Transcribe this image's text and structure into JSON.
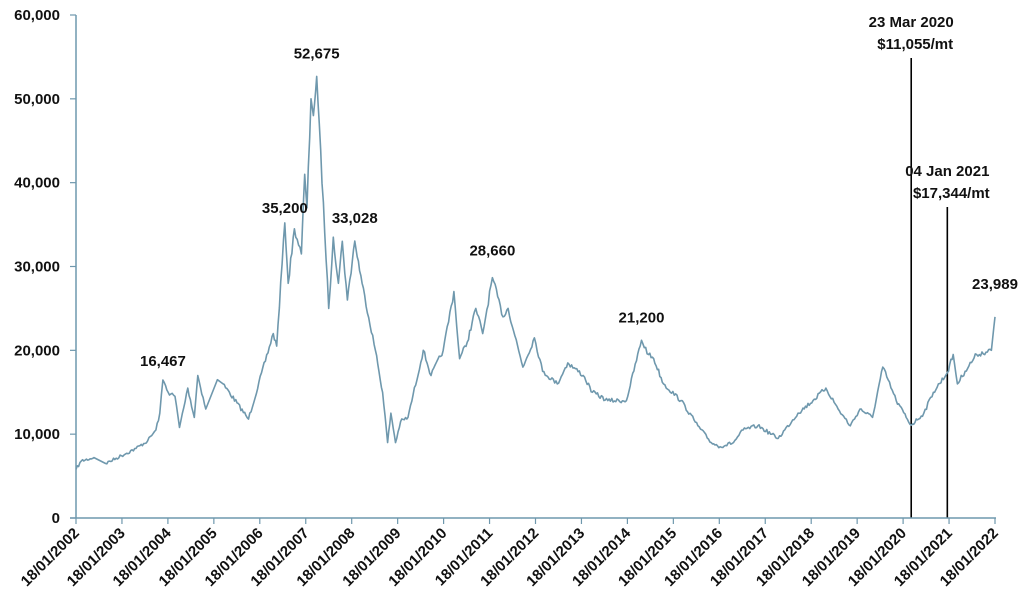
{
  "chart_data": {
    "type": "line",
    "title": "",
    "xlabel": "",
    "ylabel": "",
    "ylim": [
      0,
      60000
    ],
    "xlim": [
      "2002-01-18",
      "2022-01-18"
    ],
    "grid": false,
    "line_color": "#6f98ad",
    "y_ticks": [
      "0",
      "10,000",
      "20,000",
      "30,000",
      "40,000",
      "50,000",
      "60,000"
    ],
    "y_tick_values": [
      0,
      10000,
      20000,
      30000,
      40000,
      50000,
      60000
    ],
    "x_ticks": [
      "18/01/2002",
      "18/01/2003",
      "18/01/2004",
      "18/01/2005",
      "18/01/2006",
      "18/01/2007",
      "18/01/2008",
      "18/01/2009",
      "18/01/2010",
      "18/01/2011",
      "18/01/2012",
      "18/01/2013",
      "18/01/2014",
      "18/01/2015",
      "18/01/2016",
      "18/01/2017",
      "18/01/2018",
      "18/01/2019",
      "18/01/2020",
      "18/01/2021",
      "18/01/2022"
    ],
    "series": [
      {
        "points": [
          [
            "2002-01-18",
            5800
          ],
          [
            "2002-03-01",
            6800
          ],
          [
            "2002-06-10",
            7200
          ],
          [
            "2002-09-10",
            6500
          ],
          [
            "2003-05-10",
            8300
          ],
          [
            "2003-08-10",
            9200
          ],
          [
            "2003-10-15",
            10500
          ],
          [
            "2003-11-15",
            12500
          ],
          [
            "2003-12-10",
            16467
          ],
          [
            "2004-01-20",
            15000
          ],
          [
            "2004-03-15",
            14500
          ],
          [
            "2004-04-20",
            10800
          ],
          [
            "2004-06-25",
            15500
          ],
          [
            "2004-08-15",
            12000
          ],
          [
            "2004-09-12",
            17000
          ],
          [
            "2004-11-15",
            13000
          ],
          [
            "2005-02-15",
            16500
          ],
          [
            "2005-04-01",
            16000
          ],
          [
            "2005-10-20",
            11800
          ],
          [
            "2006-05-05",
            22000
          ],
          [
            "2006-06-01",
            20500
          ],
          [
            "2006-08-05",
            35200
          ],
          [
            "2006-09-01",
            28000
          ],
          [
            "2006-10-20",
            34500
          ],
          [
            "2006-12-15",
            31500
          ],
          [
            "2007-01-10",
            41000
          ],
          [
            "2007-01-28",
            37000
          ],
          [
            "2007-03-01",
            50000
          ],
          [
            "2007-03-20",
            48000
          ],
          [
            "2007-04-15",
            52675
          ],
          [
            "2007-07-20",
            25000
          ],
          [
            "2007-08-25",
            33500
          ],
          [
            "2007-10-05",
            28000
          ],
          [
            "2007-11-05",
            33000
          ],
          [
            "2007-12-15",
            26000
          ],
          [
            "2008-02-12",
            33028
          ],
          [
            "2008-04-10",
            28000
          ],
          [
            "2008-07-25",
            20000
          ],
          [
            "2008-09-20",
            15000
          ],
          [
            "2008-10-30",
            9000
          ],
          [
            "2008-11-25",
            12500
          ],
          [
            "2009-01-01",
            9000
          ],
          [
            "2009-02-10",
            11500
          ],
          [
            "2009-04-10",
            12000
          ],
          [
            "2009-08-10",
            20000
          ],
          [
            "2009-10-10",
            17000
          ],
          [
            "2010-01-15",
            20000
          ],
          [
            "2010-04-10",
            27000
          ],
          [
            "2010-05-25",
            19000
          ],
          [
            "2010-07-25",
            21000
          ],
          [
            "2010-10-01",
            25000
          ],
          [
            "2010-11-25",
            22000
          ],
          [
            "2011-02-10",
            28660
          ],
          [
            "2011-05-05",
            24000
          ],
          [
            "2011-06-15",
            25000
          ],
          [
            "2011-10-10",
            18000
          ],
          [
            "2012-01-10",
            21500
          ],
          [
            "2012-03-15",
            17500
          ],
          [
            "2012-07-10",
            16000
          ],
          [
            "2012-10-01",
            18500
          ],
          [
            "2013-02-01",
            17000
          ],
          [
            "2013-04-15",
            15000
          ],
          [
            "2013-08-15",
            14000
          ],
          [
            "2014-01-10",
            14000
          ],
          [
            "2014-05-10",
            21200
          ],
          [
            "2014-07-05",
            19500
          ],
          [
            "2014-08-15",
            19000
          ],
          [
            "2014-11-01",
            16000
          ],
          [
            "2015-03-20",
            14000
          ],
          [
            "2015-08-01",
            11000
          ],
          [
            "2015-11-15",
            9000
          ],
          [
            "2016-01-25",
            8500
          ],
          [
            "2016-05-10",
            9000
          ],
          [
            "2016-07-25",
            10500
          ],
          [
            "2016-11-20",
            11000
          ],
          [
            "2017-05-01",
            9500
          ],
          [
            "2017-10-05",
            12500
          ],
          [
            "2018-02-01",
            14000
          ],
          [
            "2018-05-15",
            15500
          ],
          [
            "2018-08-20",
            13000
          ],
          [
            "2018-11-25",
            11000
          ],
          [
            "2019-02-10",
            13000
          ],
          [
            "2019-05-20",
            12000
          ],
          [
            "2019-08-10",
            18000
          ],
          [
            "2019-11-25",
            14000
          ],
          [
            "2020-03-23",
            11055
          ],
          [
            "2020-07-01",
            12500
          ],
          [
            "2020-09-15",
            15000
          ],
          [
            "2021-01-04",
            17344
          ],
          [
            "2021-02-20",
            19500
          ],
          [
            "2021-03-25",
            16000
          ],
          [
            "2021-05-25",
            17500
          ],
          [
            "2021-08-25",
            19500
          ],
          [
            "2021-12-20",
            20000
          ],
          [
            "2022-01-18",
            23989
          ]
        ]
      }
    ],
    "peak_labels": [
      {
        "text": "16,467",
        "date": "2003-12-10",
        "value": 16467
      },
      {
        "text": "52,675",
        "date": "2007-04-15",
        "value": 52675
      },
      {
        "text": "35,200",
        "date": "2006-08-05",
        "value": 35200
      },
      {
        "text": "33,028",
        "date": "2008-02-12",
        "value": 33028
      },
      {
        "text": "28,660",
        "date": "2011-02-10",
        "value": 28660
      },
      {
        "text": "21,200",
        "date": "2014-05-10",
        "value": 21200
      },
      {
        "text": "23,989",
        "date": "2022-01-18",
        "value": 23989
      }
    ],
    "annotations": [
      {
        "date": "2020-03-23",
        "line1": "23 Mar 2020",
        "line2": "$11,055/mt",
        "line_color": "#000000"
      },
      {
        "date": "2021-01-04",
        "line1": "04 Jan 2021",
        "line2": "$17,344/mt",
        "line_color": "#000000"
      }
    ]
  }
}
